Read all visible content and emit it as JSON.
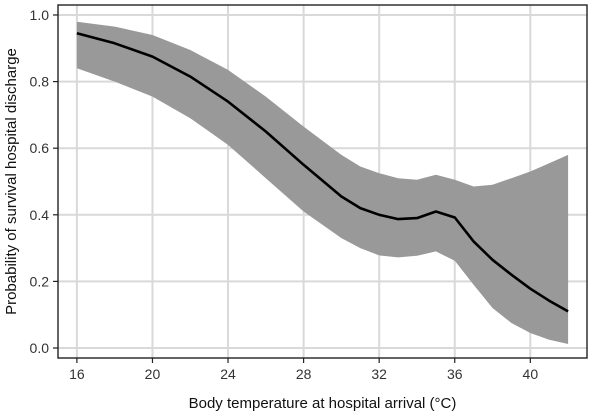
{
  "chart_data": {
    "type": "line",
    "title": "",
    "xlabel": "Body temperature at hospital arrival (°C)",
    "ylabel": "Probability of survival hospital discharge",
    "xlim": [
      15,
      43
    ],
    "ylim": [
      -0.03,
      1.03
    ],
    "x_ticks": [
      16,
      20,
      24,
      28,
      32,
      36,
      40
    ],
    "x_tick_labels": [
      "16",
      "20",
      "24",
      "28",
      "32",
      "36",
      "40"
    ],
    "y_ticks": [
      0.0,
      0.2,
      0.4,
      0.6,
      0.8,
      1.0
    ],
    "y_tick_labels": [
      "0.0",
      "0.2",
      "0.4",
      "0.6",
      "0.8",
      "1.0"
    ],
    "grid": true,
    "legend": "none",
    "colors": {
      "line": "#000000",
      "band": "#999999",
      "grid": "#d9d9d9",
      "axis": "#222222"
    },
    "series": [
      {
        "x": [
          16,
          18,
          20,
          22,
          24,
          26,
          28,
          30,
          31,
          32,
          33,
          34,
          35,
          36,
          37,
          38,
          39,
          40,
          41,
          42
        ],
        "estimate": [
          0.945,
          0.915,
          0.875,
          0.815,
          0.74,
          0.65,
          0.55,
          0.455,
          0.42,
          0.4,
          0.387,
          0.39,
          0.41,
          0.392,
          0.32,
          0.265,
          0.22,
          0.178,
          0.142,
          0.11
        ],
        "lower": [
          0.84,
          0.8,
          0.755,
          0.69,
          0.61,
          0.51,
          0.41,
          0.33,
          0.3,
          0.278,
          0.272,
          0.277,
          0.29,
          0.262,
          0.19,
          0.12,
          0.075,
          0.045,
          0.025,
          0.012
        ],
        "upper": [
          0.98,
          0.965,
          0.94,
          0.895,
          0.835,
          0.755,
          0.665,
          0.58,
          0.545,
          0.525,
          0.51,
          0.505,
          0.52,
          0.505,
          0.485,
          0.49,
          0.51,
          0.53,
          0.555,
          0.58
        ]
      }
    ]
  }
}
